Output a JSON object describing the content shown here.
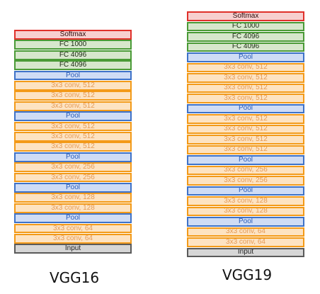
{
  "networks": [
    {
      "caption": "VGG16",
      "layers": [
        {
          "label": "Softmax",
          "kind": "softmax"
        },
        {
          "label": "FC 1000",
          "kind": "fc"
        },
        {
          "label": "FC 4096",
          "kind": "fc"
        },
        {
          "label": "FC 4096",
          "kind": "fc"
        },
        {
          "label": "Pool",
          "kind": "pool"
        },
        {
          "label": "3x3 conv, 512",
          "kind": "conv"
        },
        {
          "label": "3x3 conv, 512",
          "kind": "conv"
        },
        {
          "label": "3x3 conv, 512",
          "kind": "conv"
        },
        {
          "label": "Pool",
          "kind": "pool"
        },
        {
          "label": "3x3 conv, 512",
          "kind": "conv"
        },
        {
          "label": "3x3 conv, 512",
          "kind": "conv"
        },
        {
          "label": "3x3 conv, 512",
          "kind": "conv"
        },
        {
          "label": "Pool",
          "kind": "pool"
        },
        {
          "label": "3x3 conv, 256",
          "kind": "conv"
        },
        {
          "label": "3x3 conv, 256",
          "kind": "conv"
        },
        {
          "label": "Pool",
          "kind": "pool"
        },
        {
          "label": "3x3 conv, 128",
          "kind": "conv"
        },
        {
          "label": "3x3 conv, 128",
          "kind": "conv"
        },
        {
          "label": "Pool",
          "kind": "pool"
        },
        {
          "label": "3x3 conv, 64",
          "kind": "conv"
        },
        {
          "label": "3x3 conv, 64",
          "kind": "conv"
        },
        {
          "label": "Input",
          "kind": "input"
        }
      ]
    },
    {
      "caption": "VGG19",
      "layers": [
        {
          "label": "Softmax",
          "kind": "softmax"
        },
        {
          "label": "FC 1000",
          "kind": "fc"
        },
        {
          "label": "FC 4096",
          "kind": "fc"
        },
        {
          "label": "FC 4096",
          "kind": "fc"
        },
        {
          "label": "Pool",
          "kind": "pool"
        },
        {
          "label": "3x3 conv, 512",
          "kind": "conv"
        },
        {
          "label": "3x3 conv, 512",
          "kind": "conv"
        },
        {
          "label": "3x3 conv, 512",
          "kind": "conv"
        },
        {
          "label": "3x3 conv, 512",
          "kind": "conv"
        },
        {
          "label": "Pool",
          "kind": "pool"
        },
        {
          "label": "3x3 conv, 512",
          "kind": "conv"
        },
        {
          "label": "3x3 conv, 512",
          "kind": "conv"
        },
        {
          "label": "3x3 conv, 512",
          "kind": "conv"
        },
        {
          "label": "3x3 conv, 512",
          "kind": "conv"
        },
        {
          "label": "Pool",
          "kind": "pool"
        },
        {
          "label": "3x3 conv, 256",
          "kind": "conv"
        },
        {
          "label": "3x3 conv, 256",
          "kind": "conv"
        },
        {
          "label": "Pool",
          "kind": "pool"
        },
        {
          "label": "3x3 conv, 128",
          "kind": "conv"
        },
        {
          "label": "3x3 conv, 128",
          "kind": "conv"
        },
        {
          "label": "Pool",
          "kind": "pool"
        },
        {
          "label": "3x3 conv, 64",
          "kind": "conv"
        },
        {
          "label": "3x3 conv, 64",
          "kind": "conv"
        },
        {
          "label": "Input",
          "kind": "input"
        }
      ]
    }
  ],
  "colors": {
    "softmax": "#e0302a",
    "fc": "#4a9a36",
    "pool": "#3e72c8",
    "conv": "#f39a18",
    "input": "#5a5a5a"
  }
}
